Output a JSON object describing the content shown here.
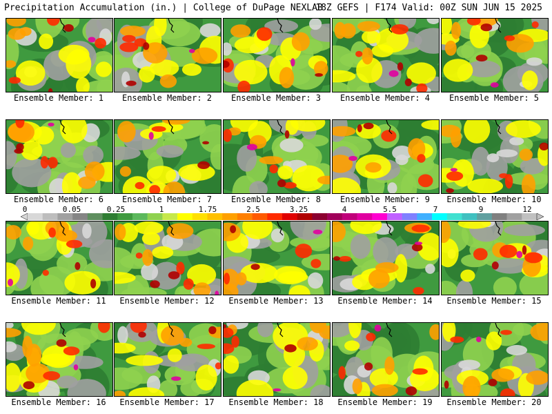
{
  "header": {
    "left_title": "Precipitation Accumulation (in.) | College of DuPage NEXLAB",
    "right_title": "18Z GEFS | F174 Valid: 00Z SUN JUN 15 2025"
  },
  "members": [
    {
      "label": "Ensemble Member: 1"
    },
    {
      "label": "Ensemble Member: 2"
    },
    {
      "label": "Ensemble Member: 3"
    },
    {
      "label": "Ensemble Member: 4"
    },
    {
      "label": "Ensemble Member: 5"
    },
    {
      "label": "Ensemble Member: 6"
    },
    {
      "label": "Ensemble Member: 7"
    },
    {
      "label": "Ensemble Member: 8"
    },
    {
      "label": "Ensemble Member: 9"
    },
    {
      "label": "Ensemble Member: 10"
    },
    {
      "label": "Ensemble Member: 11"
    },
    {
      "label": "Ensemble Member: 12"
    },
    {
      "label": "Ensemble Member: 13"
    },
    {
      "label": "Ensemble Member: 14"
    },
    {
      "label": "Ensemble Member: 15"
    },
    {
      "label": "Ensemble Member: 16"
    },
    {
      "label": "Ensemble Member: 17"
    },
    {
      "label": "Ensemble Member: 18"
    },
    {
      "label": "Ensemble Member: 19"
    },
    {
      "label": "Ensemble Member: 20"
    }
  ],
  "colorbar": {
    "tick_labels": [
      "0",
      "0.05",
      "0.25",
      "1",
      "1.75",
      "2.5",
      "3.25",
      "4",
      "5.5",
      "7",
      "9",
      "12"
    ],
    "colors": [
      "#d8d8d8",
      "#bdbdbd",
      "#a0a0a0",
      "#858585",
      "#5f8f5f",
      "#2e7d32",
      "#3f9a3f",
      "#5cb85c",
      "#8fd14f",
      "#c6e84a",
      "#ffff00",
      "#ffe000",
      "#ffc000",
      "#ffa000",
      "#ff7f00",
      "#ff5a00",
      "#ff2a00",
      "#e00000",
      "#b00000",
      "#8b0030",
      "#a0005a",
      "#c0007a",
      "#e000a0",
      "#ff00d0",
      "#c060ff",
      "#8080ff",
      "#40b0ff",
      "#00ffff",
      "#40e0d0",
      "#40c0c0",
      "#60a0a0",
      "#808080",
      "#a0a0a0",
      "#c0c0c0"
    ]
  }
}
